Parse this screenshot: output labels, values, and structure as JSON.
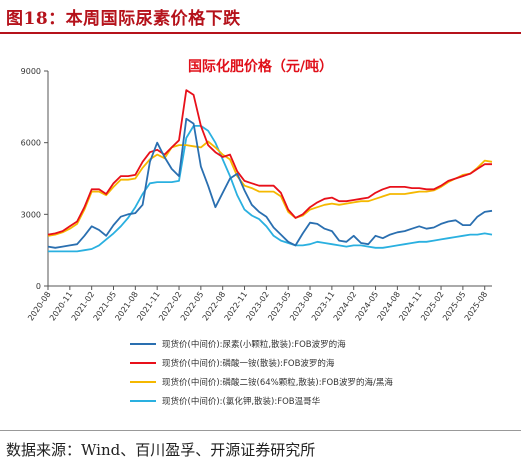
{
  "figure_title": "图18：本周国际尿素价格下跌",
  "source": "数据来源：Wind、百川盈孚、开源证券研究所",
  "chart_data": {
    "type": "line",
    "title": "国际化肥价格（元/吨）",
    "xlabel": "",
    "ylabel": "",
    "ylim": [
      0,
      9000
    ],
    "yticks": [
      0,
      3000,
      6000,
      9000
    ],
    "xlim": [
      "2020-08",
      "2025-09"
    ],
    "xticks": [
      "2020-08",
      "2020-11",
      "2021-02",
      "2021-05",
      "2021-08",
      "2021-11",
      "2022-02",
      "2022-05",
      "2022-08",
      "2022-11",
      "2023-02",
      "2023-05",
      "2023-08",
      "2023-11",
      "2024-02",
      "2024-05",
      "2024-08",
      "2024-11",
      "2025-02",
      "2025-05",
      "2025-08"
    ],
    "grid": false,
    "legend_position": "bottom",
    "series": [
      {
        "name": "现货价(中间价):尿素(小颗粒,散装):FOB波罗的海",
        "color": "#2a6fb0",
        "x": [
          "2020-08",
          "2020-09",
          "2020-10",
          "2020-11",
          "2020-12",
          "2021-01",
          "2021-02",
          "2021-03",
          "2021-04",
          "2021-05",
          "2021-06",
          "2021-07",
          "2021-08",
          "2021-09",
          "2021-10",
          "2021-11",
          "2021-12",
          "2022-01",
          "2022-02",
          "2022-03",
          "2022-04",
          "2022-05",
          "2022-06",
          "2022-07",
          "2022-08",
          "2022-09",
          "2022-10",
          "2022-11",
          "2022-12",
          "2023-01",
          "2023-02",
          "2023-03",
          "2023-04",
          "2023-05",
          "2023-06",
          "2023-07",
          "2023-08",
          "2023-09",
          "2023-10",
          "2023-11",
          "2023-12",
          "2024-01",
          "2024-02",
          "2024-03",
          "2024-04",
          "2024-05",
          "2024-06",
          "2024-07",
          "2024-08",
          "2024-09",
          "2024-10",
          "2024-11",
          "2024-12",
          "2025-01",
          "2025-02",
          "2025-03",
          "2025-04",
          "2025-05",
          "2025-06",
          "2025-07",
          "2025-08",
          "2025-09"
        ],
        "y": [
          1650,
          1600,
          1650,
          1700,
          1750,
          2100,
          2500,
          2350,
          2100,
          2550,
          2900,
          3000,
          3050,
          3400,
          5200,
          6000,
          5400,
          4900,
          4600,
          7000,
          6800,
          5000,
          4200,
          3300,
          3900,
          4500,
          4700,
          4000,
          3400,
          3100,
          2900,
          2450,
          2150,
          1850,
          1700,
          2200,
          2650,
          2600,
          2400,
          2300,
          1900,
          1850,
          2100,
          1800,
          1750,
          2100,
          2000,
          2150,
          2250,
          2300,
          2400,
          2500,
          2400,
          2450,
          2600,
          2700,
          2750,
          2550,
          2550,
          2900,
          3100,
          3150
        ]
      },
      {
        "name": "现货价(中间价):磷酸一铵(散装):FOB波罗的海",
        "color": "#e8101a",
        "x": [
          "2020-08",
          "2020-09",
          "2020-10",
          "2020-11",
          "2020-12",
          "2021-01",
          "2021-02",
          "2021-03",
          "2021-04",
          "2021-05",
          "2021-06",
          "2021-07",
          "2021-08",
          "2021-09",
          "2021-10",
          "2021-11",
          "2021-12",
          "2022-01",
          "2022-02",
          "2022-03",
          "2022-04",
          "2022-05",
          "2022-06",
          "2022-07",
          "2022-08",
          "2022-09",
          "2022-10",
          "2022-11",
          "2022-12",
          "2023-01",
          "2023-02",
          "2023-03",
          "2023-04",
          "2023-05",
          "2023-06",
          "2023-07",
          "2023-08",
          "2023-09",
          "2023-10",
          "2023-11",
          "2023-12",
          "2024-01",
          "2024-02",
          "2024-03",
          "2024-04",
          "2024-05",
          "2024-06",
          "2024-07",
          "2024-08",
          "2024-09",
          "2024-10",
          "2024-11",
          "2024-12",
          "2025-01",
          "2025-02",
          "2025-03",
          "2025-04",
          "2025-05",
          "2025-06",
          "2025-07",
          "2025-08",
          "2025-09"
        ],
        "y": [
          2150,
          2200,
          2300,
          2500,
          2700,
          3300,
          4050,
          4050,
          3850,
          4300,
          4600,
          4600,
          4650,
          5200,
          5600,
          5700,
          5500,
          5800,
          6100,
          8200,
          8000,
          6700,
          5900,
          5600,
          5400,
          5500,
          4800,
          4400,
          4300,
          4200,
          4200,
          4200,
          3900,
          3200,
          2850,
          3000,
          3300,
          3500,
          3650,
          3700,
          3550,
          3550,
          3600,
          3650,
          3700,
          3900,
          4050,
          4150,
          4150,
          4150,
          4100,
          4100,
          4050,
          4050,
          4200,
          4400,
          4500,
          4600,
          4700,
          4900,
          5100,
          5100
        ]
      },
      {
        "name": "现货价(中间价):磷酸二铵(64%颗粒,散装):FOB波罗的海/黑海",
        "color": "#f5b800",
        "x": [
          "2020-08",
          "2020-09",
          "2020-10",
          "2020-11",
          "2020-12",
          "2021-01",
          "2021-02",
          "2021-03",
          "2021-04",
          "2021-05",
          "2021-06",
          "2021-07",
          "2021-08",
          "2021-09",
          "2021-10",
          "2021-11",
          "2021-12",
          "2022-01",
          "2022-02",
          "2022-03",
          "2022-04",
          "2022-05",
          "2022-06",
          "2022-07",
          "2022-08",
          "2022-09",
          "2022-10",
          "2022-11",
          "2022-12",
          "2023-01",
          "2023-02",
          "2023-03",
          "2023-04",
          "2023-05",
          "2023-06",
          "2023-07",
          "2023-08",
          "2023-09",
          "2023-10",
          "2023-11",
          "2023-12",
          "2024-01",
          "2024-02",
          "2024-03",
          "2024-04",
          "2024-05",
          "2024-06",
          "2024-07",
          "2024-08",
          "2024-09",
          "2024-10",
          "2024-11",
          "2024-12",
          "2025-01",
          "2025-02",
          "2025-03",
          "2025-04",
          "2025-05",
          "2025-06",
          "2025-07",
          "2025-08",
          "2025-09"
        ],
        "y": [
          2100,
          2150,
          2250,
          2400,
          2600,
          3200,
          3950,
          3950,
          3800,
          4150,
          4450,
          4450,
          4500,
          4950,
          5300,
          5500,
          5350,
          5800,
          5900,
          5900,
          5850,
          5800,
          6050,
          5800,
          5500,
          5300,
          4600,
          4200,
          4100,
          3950,
          3950,
          3950,
          3750,
          3100,
          2850,
          2950,
          3200,
          3300,
          3400,
          3450,
          3400,
          3450,
          3500,
          3550,
          3550,
          3650,
          3750,
          3850,
          3850,
          3850,
          3900,
          3950,
          3950,
          4000,
          4150,
          4350,
          4500,
          4650,
          4700,
          4950,
          5250,
          5200
        ]
      },
      {
        "name": "现货价(中间价):(氯化钾,散装):FOB温哥华",
        "color": "#2ab0e0",
        "x": [
          "2020-08",
          "2020-09",
          "2020-10",
          "2020-11",
          "2020-12",
          "2021-01",
          "2021-02",
          "2021-03",
          "2021-04",
          "2021-05",
          "2021-06",
          "2021-07",
          "2021-08",
          "2021-09",
          "2021-10",
          "2021-11",
          "2021-12",
          "2022-01",
          "2022-02",
          "2022-03",
          "2022-04",
          "2022-05",
          "2022-06",
          "2022-07",
          "2022-08",
          "2022-09",
          "2022-10",
          "2022-11",
          "2022-12",
          "2023-01",
          "2023-02",
          "2023-03",
          "2023-04",
          "2023-05",
          "2023-06",
          "2023-07",
          "2023-08",
          "2023-09",
          "2023-10",
          "2023-11",
          "2023-12",
          "2024-01",
          "2024-02",
          "2024-03",
          "2024-04",
          "2024-05",
          "2024-06",
          "2024-07",
          "2024-08",
          "2024-09",
          "2024-10",
          "2024-11",
          "2024-12",
          "2025-01",
          "2025-02",
          "2025-03",
          "2025-04",
          "2025-05",
          "2025-06",
          "2025-07",
          "2025-08",
          "2025-09"
        ],
        "y": [
          1450,
          1450,
          1450,
          1450,
          1450,
          1500,
          1550,
          1700,
          1950,
          2200,
          2500,
          2850,
          3300,
          3850,
          4300,
          4350,
          4350,
          4350,
          4400,
          6200,
          6700,
          6700,
          6500,
          6000,
          5300,
          4600,
          3800,
          3200,
          2950,
          2800,
          2500,
          2100,
          1900,
          1800,
          1700,
          1700,
          1750,
          1850,
          1800,
          1750,
          1700,
          1650,
          1700,
          1700,
          1650,
          1600,
          1600,
          1650,
          1700,
          1750,
          1800,
          1850,
          1850,
          1900,
          1950,
          2000,
          2050,
          2100,
          2150,
          2150,
          2200,
          2150
        ]
      }
    ]
  }
}
